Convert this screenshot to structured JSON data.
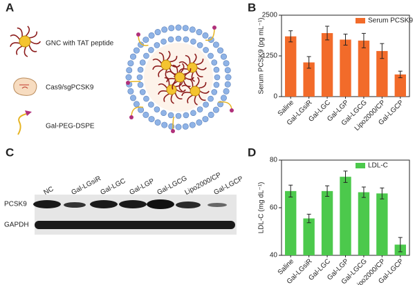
{
  "panel_labels": [
    "A",
    "B",
    "C",
    "D"
  ],
  "diagram": {
    "items": [
      "GNC with TAT peptide",
      "Cas9/sgPCSK9",
      "Gal-PEG-DSPE"
    ]
  },
  "blot": {
    "lanes": [
      "NC",
      "Gal-LGsiR",
      "Gal-LGC",
      "Gal-LGP",
      "Gal-LGCG",
      "Lipo2000/CP",
      "Gal-LGCP"
    ],
    "rows": [
      "PCSK9",
      "GAPDH"
    ]
  },
  "chart_data": [
    {
      "type": "bar",
      "ylabel": "Serum PCSK9 (pg mL⁻¹)",
      "categories": [
        "Saline",
        "Gal-LGsiR",
        "Gal-LGC",
        "Gal-LGP",
        "Gal-LGCG",
        "Lipo2000/CP",
        "Gal-LGCP"
      ],
      "series": [
        {
          "name": "Serum PCSK9",
          "color": "#f26b2a",
          "values": [
            1850,
            1050,
            1950,
            1750,
            1720,
            1400,
            680
          ],
          "errors": [
            170,
            180,
            210,
            170,
            220,
            230,
            100
          ]
        }
      ],
      "ylim": [
        0,
        2500
      ],
      "yticks": [
        0,
        1250,
        2500
      ],
      "legend": "upper right"
    },
    {
      "type": "bar",
      "ylabel": "LDL-C (mg dL⁻¹)",
      "categories": [
        "Saline",
        "Gal-LGsiR",
        "Gal-LGC",
        "Gal-LGP",
        "Gal-LGCG",
        "Lipo2000/CP",
        "Gal-LGCP"
      ],
      "series": [
        {
          "name": "LDL-C",
          "color": "#4cc94c",
          "values": [
            67,
            55.5,
            67,
            73,
            66.5,
            66,
            44.5
          ],
          "errors": [
            2.5,
            1.8,
            2.2,
            2.4,
            2.2,
            2.3,
            3
          ]
        }
      ],
      "ylim": [
        40,
        80
      ],
      "yticks": [
        40,
        60,
        80
      ],
      "legend": "upper right"
    }
  ]
}
